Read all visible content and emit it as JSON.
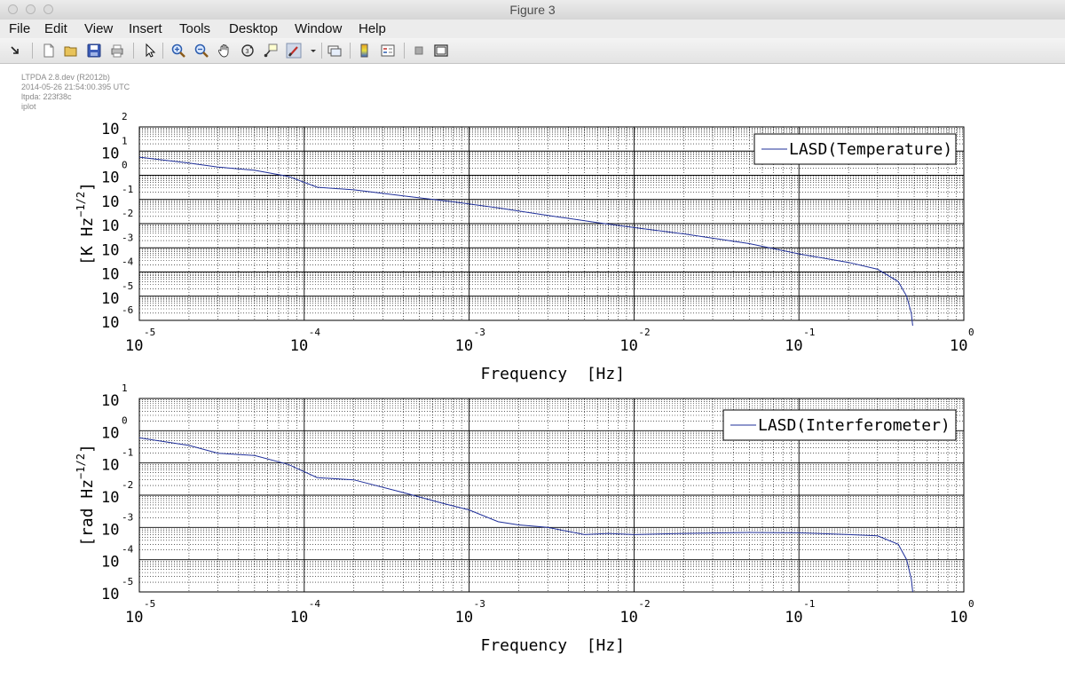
{
  "window": {
    "title": "Figure 3"
  },
  "menu": [
    "File",
    "Edit",
    "View",
    "Insert",
    "Tools",
    "Desktop",
    "Window",
    "Help"
  ],
  "toolbar": {
    "buttons": [
      {
        "name": "arrow-dock-icon"
      },
      {
        "name": "new-figure-icon"
      },
      {
        "name": "open-file-icon"
      },
      {
        "name": "save-icon"
      },
      {
        "name": "print-icon"
      },
      {
        "name": "pointer-icon"
      },
      {
        "name": "zoom-in-icon"
      },
      {
        "name": "zoom-out-icon"
      },
      {
        "name": "pan-hand-icon"
      },
      {
        "name": "rotate-3d-icon"
      },
      {
        "name": "data-cursor-icon"
      },
      {
        "name": "brush-icon"
      },
      {
        "name": "link-plot-icon"
      },
      {
        "name": "colorbar-icon"
      },
      {
        "name": "legend-icon"
      },
      {
        "name": "hide-plot-tools-icon"
      },
      {
        "name": "show-plot-tools-icon"
      }
    ]
  },
  "info": {
    "lines": [
      "LTPDA 2.8.dev (R2012b)",
      "2014-05-26 21:54:00.395 UTC",
      "ltpda: 223f38c",
      "iplot"
    ]
  },
  "chart_data": [
    {
      "type": "line",
      "xscale": "log",
      "yscale": "log",
      "xlabel": "Frequency  [Hz]",
      "ylabel": "[K Hz^{-1/2}]",
      "ylabel_main": "[K Hz",
      "ylabel_exp": "−1/2",
      "ylabel_end": "]",
      "xlim": [
        1e-05,
        1
      ],
      "ylim": [
        1e-06,
        100
      ],
      "x_tick_exponents": [
        "-5",
        "-4",
        "-3",
        "-2",
        "-1",
        "0"
      ],
      "y_tick_exponents": [
        "2",
        "1",
        "0",
        "-1",
        "-2",
        "-3",
        "-4",
        "-5",
        "-6"
      ],
      "grid": true,
      "legend_position": "top-right",
      "series": [
        {
          "name": "LASD(Temperature)",
          "color": "#1f2f9a",
          "x": [
            1e-05,
            2e-05,
            3e-05,
            5e-05,
            8e-05,
            0.00012,
            0.0002,
            0.0004,
            0.0008,
            0.0015,
            0.003,
            0.006,
            0.01,
            0.02,
            0.05,
            0.1,
            0.2,
            0.3,
            0.4,
            0.45,
            0.48,
            0.49
          ],
          "y": [
            5.6,
            3.2,
            2.2,
            1.6,
            0.9,
            0.32,
            0.25,
            0.14,
            0.08,
            0.045,
            0.022,
            0.011,
            0.0069,
            0.0038,
            0.0015,
            0.00056,
            0.00025,
            0.00013,
            4e-05,
            1e-05,
            2e-06,
            6e-07
          ]
        }
      ]
    },
    {
      "type": "line",
      "xscale": "log",
      "yscale": "log",
      "xlabel": "Frequency  [Hz]",
      "ylabel": "[rad Hz^{-1/2}]",
      "ylabel_main": "[rad Hz",
      "ylabel_exp": "−1/2",
      "ylabel_end": "]",
      "xlim": [
        1e-05,
        1
      ],
      "ylim": [
        1e-05,
        10
      ],
      "x_tick_exponents": [
        "-5",
        "-4",
        "-3",
        "-2",
        "-1",
        "0"
      ],
      "y_tick_exponents": [
        "1",
        "0",
        "-1",
        "-2",
        "-3",
        "-4",
        "-5"
      ],
      "grid": true,
      "legend_position": "top-right",
      "series": [
        {
          "name": "LASD(Interferometer)",
          "color": "#1f2f9a",
          "x": [
            1e-05,
            2e-05,
            3e-05,
            5e-05,
            8e-05,
            0.00012,
            0.0002,
            0.0004,
            0.0007,
            0.001,
            0.0015,
            0.002,
            0.003,
            0.005,
            0.007,
            0.01,
            0.02,
            0.05,
            0.1,
            0.2,
            0.3,
            0.4,
            0.45,
            0.48,
            0.49
          ],
          "y": [
            0.6,
            0.35,
            0.2,
            0.17,
            0.09,
            0.035,
            0.03,
            0.012,
            0.0055,
            0.0035,
            0.0015,
            0.0012,
            0.001,
            0.0006,
            0.00065,
            0.0006,
            0.00065,
            0.0007,
            0.00068,
            0.0006,
            0.00055,
            0.0003,
            0.0001,
            2.5e-05,
            1e-05
          ]
        }
      ]
    }
  ]
}
